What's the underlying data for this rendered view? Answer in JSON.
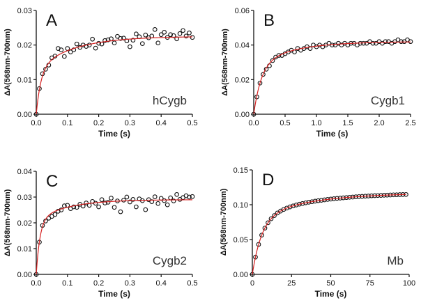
{
  "chart_data": [
    {
      "type": "scatter",
      "panel": "A",
      "annotation": "hCygb",
      "xlabel": "Time (s)",
      "ylabel": "ΔA(568nm-700nm)",
      "xlim": [
        0,
        0.5
      ],
      "ylim": [
        0,
        0.03
      ],
      "xticks": [
        "0.0",
        "0.1",
        "0.2",
        "0.3",
        "0.4",
        "0.5"
      ],
      "yticks": [
        "0.00",
        "0.01",
        "0.02",
        "0.03"
      ],
      "x_start": 0,
      "x_step": 0.01,
      "y": [
        0,
        0.0074,
        0.0117,
        0.013,
        0.0142,
        0.0163,
        0.0168,
        0.019,
        0.0186,
        0.0167,
        0.019,
        0.018,
        0.0186,
        0.0203,
        0.0193,
        0.02,
        0.0196,
        0.02,
        0.0217,
        0.0191,
        0.0205,
        0.0203,
        0.0213,
        0.0215,
        0.0218,
        0.0206,
        0.0225,
        0.0219,
        0.022,
        0.0212,
        0.0195,
        0.0214,
        0.0232,
        0.0224,
        0.0204,
        0.0229,
        0.0221,
        0.0226,
        0.0245,
        0.0206,
        0.023,
        0.0237,
        0.0222,
        0.023,
        0.0227,
        0.0218,
        0.0233,
        0.0242,
        0.0226,
        0.0235,
        0.0222
      ],
      "fit": {
        "model": "biexponential",
        "a1": 0.013,
        "tau1": 0.015,
        "a2": 0.0095,
        "tau2": 0.12,
        "color": "#d62020"
      }
    },
    {
      "type": "scatter",
      "panel": "B",
      "annotation": "Cygb1",
      "xlabel": "Time (s)",
      "ylabel": "ΔA(568nm-700nm)",
      "xlim": [
        0,
        2.5
      ],
      "ylim": [
        0,
        0.06
      ],
      "xticks": [
        "0.0",
        "0.5",
        "1.0",
        "1.5",
        "2.0",
        "2.5"
      ],
      "yticks": [
        "0.00",
        "0.02",
        "0.04",
        "0.06"
      ],
      "x_start": 0,
      "x_step": 0.05,
      "y": [
        0,
        0.01,
        0.018,
        0.023,
        0.026,
        0.028,
        0.031,
        0.033,
        0.034,
        0.034,
        0.035,
        0.036,
        0.037,
        0.036,
        0.038,
        0.037,
        0.038,
        0.039,
        0.038,
        0.04,
        0.039,
        0.04,
        0.039,
        0.04,
        0.041,
        0.04,
        0.04,
        0.041,
        0.04,
        0.041,
        0.04,
        0.041,
        0.041,
        0.04,
        0.041,
        0.041,
        0.041,
        0.042,
        0.041,
        0.041,
        0.042,
        0.041,
        0.042,
        0.042,
        0.041,
        0.042,
        0.043,
        0.042,
        0.042,
        0.043,
        0.042
      ],
      "fit": {
        "model": "biexponential",
        "a1": 0.028,
        "tau1": 0.12,
        "a2": 0.014,
        "tau2": 0.6,
        "color": "#d62020"
      }
    },
    {
      "type": "scatter",
      "panel": "C",
      "annotation": "Cygb2",
      "xlabel": "Time (s)",
      "ylabel": "ΔA(568nm-700nm)",
      "xlim": [
        0,
        0.5
      ],
      "ylim": [
        0,
        0.04
      ],
      "xticks": [
        "0.0",
        "0.1",
        "0.2",
        "0.3",
        "0.4",
        "0.5"
      ],
      "yticks": [
        "0.00",
        "0.01",
        "0.02",
        "0.03",
        "0.04"
      ],
      "x_start": 0,
      "x_step": 0.01,
      "y": [
        0,
        0.0125,
        0.019,
        0.0207,
        0.0218,
        0.0225,
        0.0232,
        0.0245,
        0.025,
        0.0266,
        0.0268,
        0.0255,
        0.0262,
        0.026,
        0.0272,
        0.0265,
        0.0277,
        0.0268,
        0.0283,
        0.0276,
        0.0262,
        0.029,
        0.0277,
        0.028,
        0.0296,
        0.026,
        0.0285,
        0.0243,
        0.0288,
        0.03,
        0.0281,
        0.0291,
        0.0262,
        0.0293,
        0.0286,
        0.0251,
        0.029,
        0.0282,
        0.0301,
        0.0275,
        0.0295,
        0.0286,
        0.027,
        0.0297,
        0.0285,
        0.031,
        0.0291,
        0.0298,
        0.0305,
        0.03,
        0.0302
      ],
      "fit": {
        "model": "biexponential",
        "a1": 0.021,
        "tau1": 0.012,
        "a2": 0.008,
        "tau2": 0.1,
        "color": "#d62020"
      }
    },
    {
      "type": "scatter",
      "panel": "D",
      "annotation": "Mb",
      "xlabel": "Time (s)",
      "ylabel": "ΔA(568nm-700nm)",
      "xlim": [
        0,
        100
      ],
      "ylim": [
        0,
        0.15
      ],
      "xticks": [
        "0",
        "25",
        "50",
        "75",
        "100"
      ],
      "yticks": [
        "0.00",
        "0.05",
        "0.10",
        "0.15"
      ],
      "x_start": 0,
      "x_step": 2,
      "y": [
        0,
        0.0248,
        0.043,
        0.0564,
        0.0664,
        0.0741,
        0.0799,
        0.0844,
        0.0881,
        0.0909,
        0.0932,
        0.0952,
        0.0969,
        0.0983,
        0.0996,
        0.1008,
        0.1018,
        0.1027,
        0.1036,
        0.1043,
        0.1051,
        0.1058,
        0.1064,
        0.107,
        0.1076,
        0.1081,
        0.1086,
        0.1091,
        0.1095,
        0.1099,
        0.1103,
        0.1107,
        0.111,
        0.1114,
        0.1117,
        0.112,
        0.1123,
        0.1125,
        0.1128,
        0.113,
        0.1132,
        0.1134,
        0.1136,
        0.1138,
        0.114,
        0.1142,
        0.1143,
        0.1145,
        0.1146,
        0.1147
      ],
      "fit": {
        "model": "biexponential",
        "a1": 0.08,
        "tau1": 6,
        "a2": 0.037,
        "tau2": 35,
        "color": "#d62020"
      }
    }
  ]
}
